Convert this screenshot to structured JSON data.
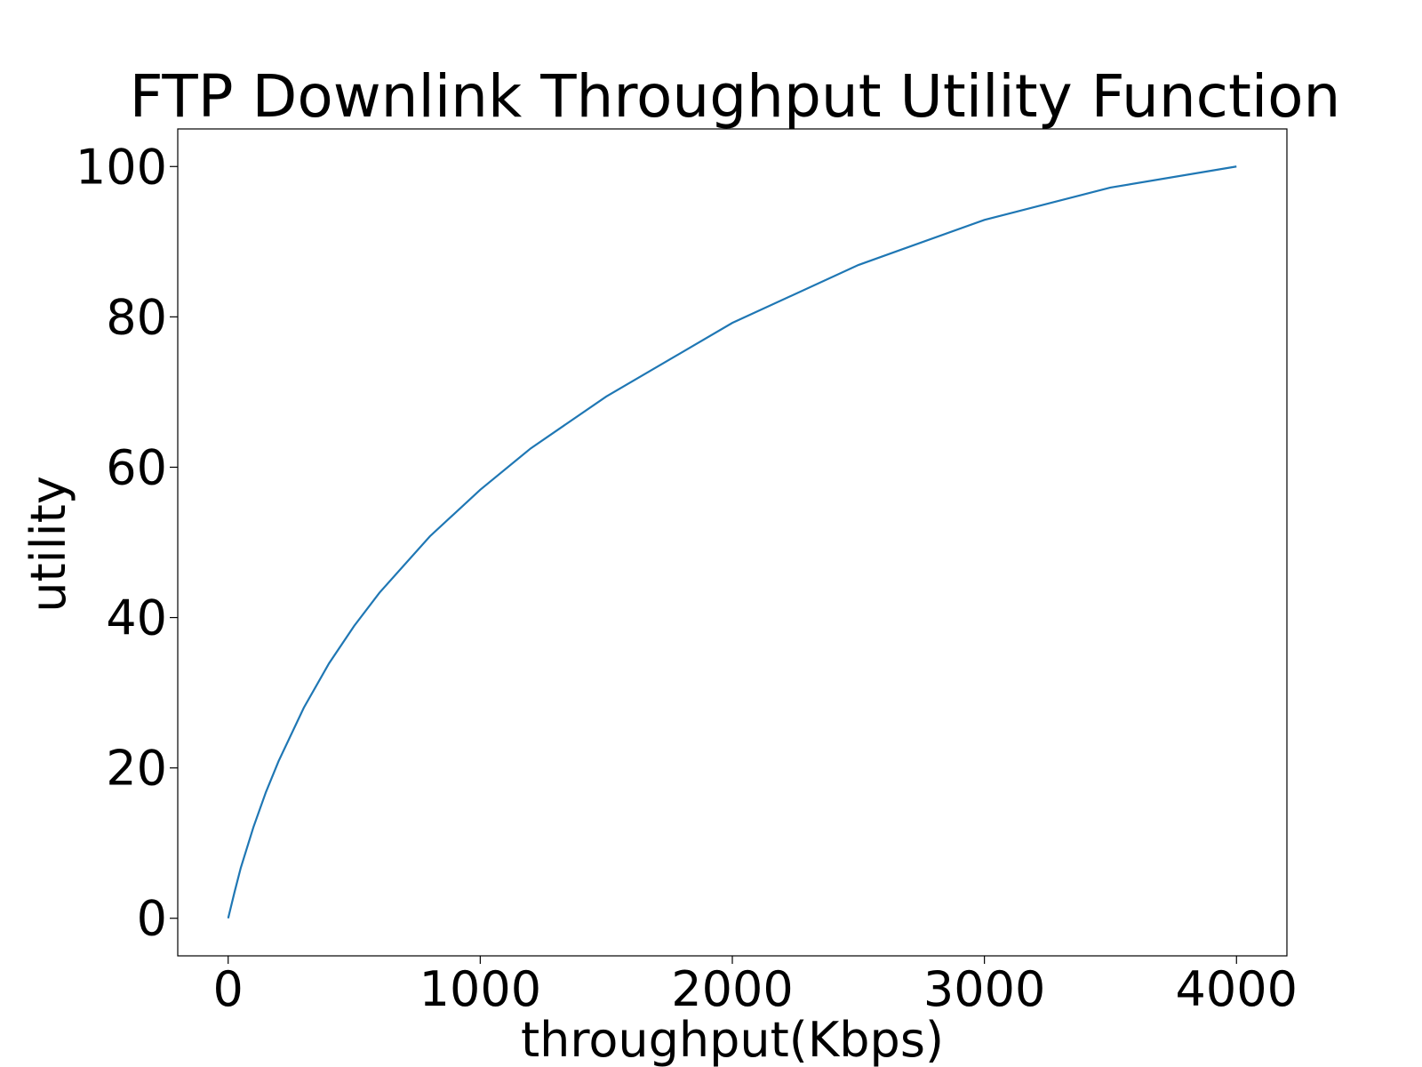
{
  "chart_data": {
    "type": "line",
    "title": "FTP Downlink Throughput Utility Function",
    "xlabel": "throughput(Kbps)",
    "ylabel": "utility",
    "xlim": [
      -200,
      4200
    ],
    "ylim": [
      -5,
      105
    ],
    "xticks": [
      0,
      1000,
      2000,
      3000,
      4000
    ],
    "yticks": [
      0,
      20,
      40,
      60,
      80,
      100
    ],
    "grid": false,
    "colors": {
      "line": "#1f77b4",
      "axes": "#000000"
    },
    "series": [
      {
        "x": [
          0,
          25,
          50,
          100,
          150,
          200,
          300,
          400,
          500,
          600,
          800,
          1000,
          1200,
          1500,
          2000,
          2500,
          3000,
          3500,
          4000
        ],
        "values": [
          0,
          3.45,
          6.71,
          12.1,
          16.8,
          20.9,
          28.0,
          33.9,
          38.9,
          43.3,
          50.8,
          57.0,
          62.5,
          69.4,
          79.2,
          86.9,
          92.9,
          97.2,
          100
        ]
      }
    ]
  }
}
